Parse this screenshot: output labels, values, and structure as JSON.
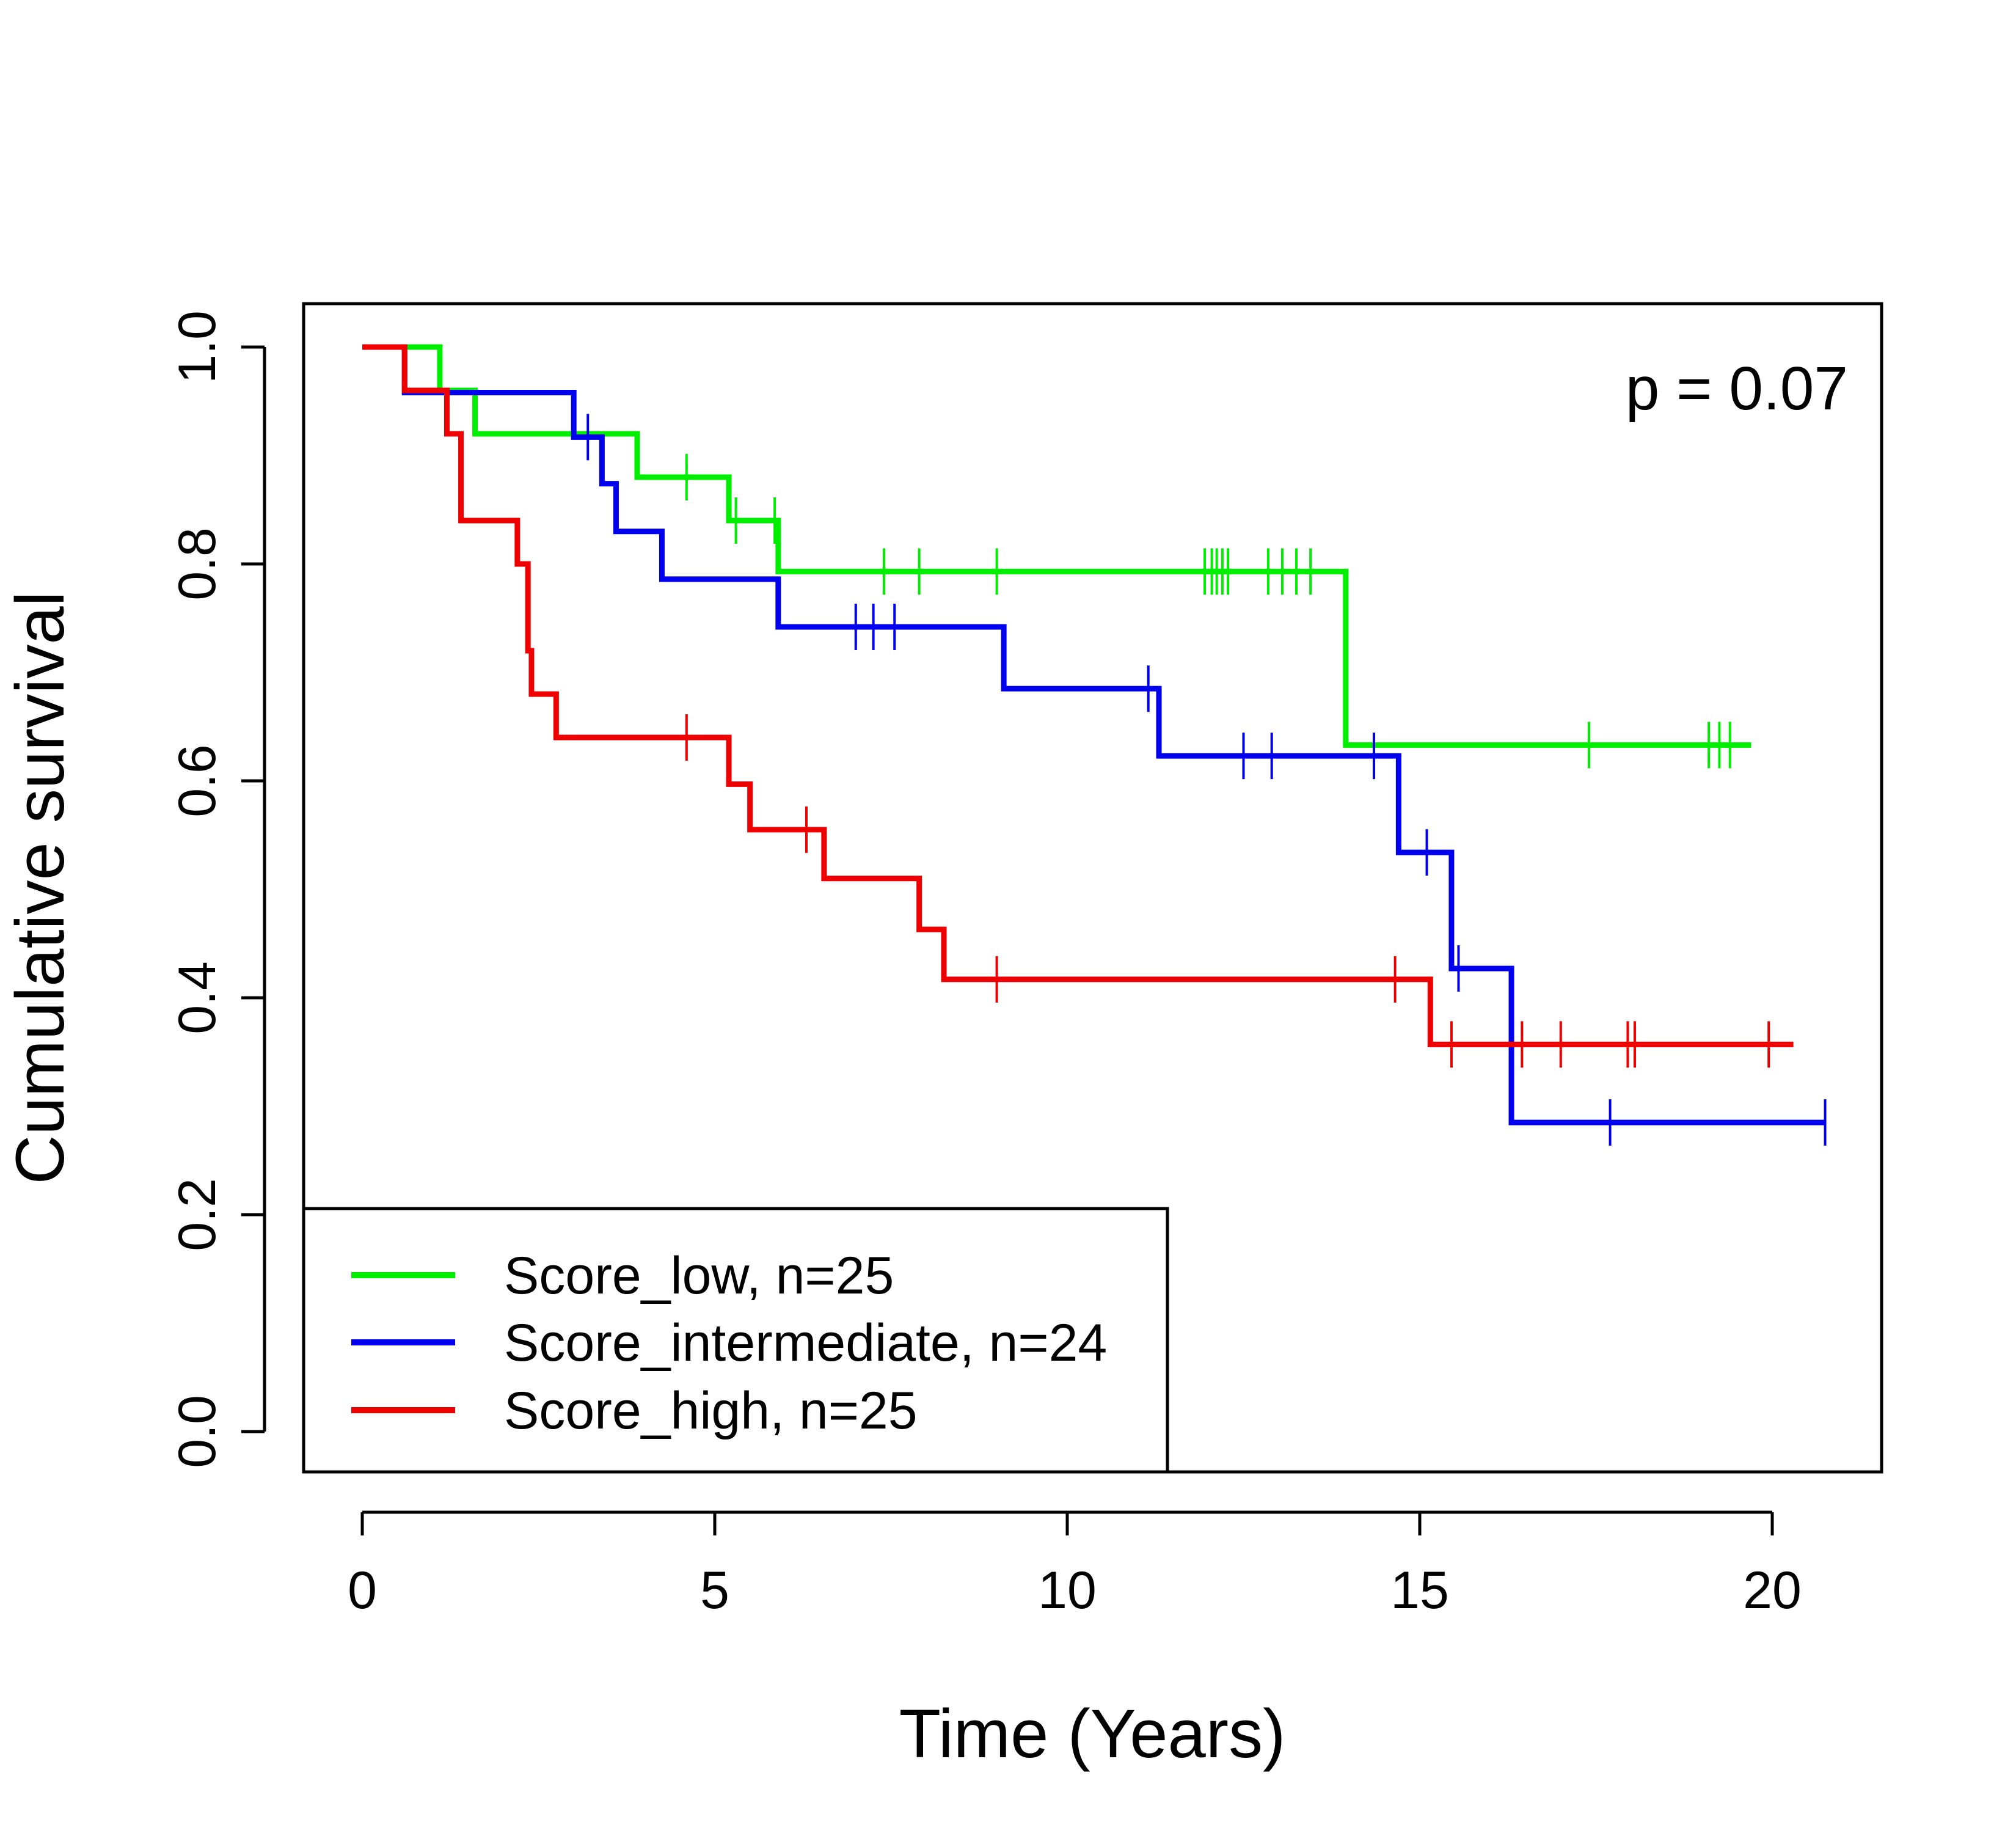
{
  "chart_data": {
    "type": "line",
    "subtype": "kaplan-meier step curves",
    "title": "",
    "xlabel": "Time (Years)",
    "ylabel": "Cumulative survival",
    "xlim": [
      0,
      21
    ],
    "ylim": [
      0,
      1.0
    ],
    "xticks": [
      0,
      5,
      10,
      15,
      20
    ],
    "xtick_labels": [
      "0",
      "5",
      "10",
      "15",
      "20"
    ],
    "yticks": [
      0.0,
      0.2,
      0.4,
      0.6,
      0.8,
      1.0
    ],
    "ytick_labels": [
      "0.0",
      "0.2",
      "0.4",
      "0.6",
      "0.8",
      "1.0"
    ],
    "grid": false,
    "legend_position": "bottom-left",
    "annotation": "p = 0.07",
    "series": [
      {
        "name": "Score_low, n=25",
        "color": "#00ee00",
        "steps": [
          {
            "t": 0.0,
            "s": 1.0
          },
          {
            "t": 1.1,
            "s": 0.96
          },
          {
            "t": 1.6,
            "s": 0.92
          },
          {
            "t": 3.9,
            "s": 0.88
          },
          {
            "t": 5.2,
            "s": 0.84
          },
          {
            "t": 5.9,
            "s": 0.793
          },
          {
            "t": 13.95,
            "s": 0.633
          }
        ],
        "end_time": 19.7,
        "censored": [
          {
            "t": 4.6,
            "s": 0.88
          },
          {
            "t": 5.3,
            "s": 0.84
          },
          {
            "t": 5.85,
            "s": 0.84
          },
          {
            "t": 7.4,
            "s": 0.793
          },
          {
            "t": 7.9,
            "s": 0.793
          },
          {
            "t": 9.0,
            "s": 0.793
          },
          {
            "t": 11.95,
            "s": 0.793
          },
          {
            "t": 12.05,
            "s": 0.793
          },
          {
            "t": 12.12,
            "s": 0.793
          },
          {
            "t": 12.2,
            "s": 0.793
          },
          {
            "t": 12.28,
            "s": 0.793
          },
          {
            "t": 12.85,
            "s": 0.793
          },
          {
            "t": 13.05,
            "s": 0.793
          },
          {
            "t": 13.25,
            "s": 0.793
          },
          {
            "t": 13.45,
            "s": 0.793
          },
          {
            "t": 17.4,
            "s": 0.633
          },
          {
            "t": 19.1,
            "s": 0.633
          },
          {
            "t": 19.25,
            "s": 0.633
          },
          {
            "t": 19.4,
            "s": 0.633
          }
        ]
      },
      {
        "name": "Score_intermediate, n=24",
        "color": "#0000ee",
        "steps": [
          {
            "t": 0.0,
            "s": 1.0
          },
          {
            "t": 0.6,
            "s": 0.958
          },
          {
            "t": 3.0,
            "s": 0.917
          },
          {
            "t": 3.4,
            "s": 0.874
          },
          {
            "t": 3.6,
            "s": 0.83
          },
          {
            "t": 4.25,
            "s": 0.786
          },
          {
            "t": 5.9,
            "s": 0.742
          },
          {
            "t": 9.1,
            "s": 0.685
          },
          {
            "t": 11.3,
            "s": 0.623
          },
          {
            "t": 14.7,
            "s": 0.534
          },
          {
            "t": 15.45,
            "s": 0.427
          },
          {
            "t": 16.3,
            "s": 0.285
          }
        ],
        "end_time": 20.75,
        "censored": [
          {
            "t": 3.2,
            "s": 0.917
          },
          {
            "t": 7.0,
            "s": 0.742
          },
          {
            "t": 7.25,
            "s": 0.742
          },
          {
            "t": 7.55,
            "s": 0.742
          },
          {
            "t": 11.15,
            "s": 0.685
          },
          {
            "t": 12.5,
            "s": 0.623
          },
          {
            "t": 12.9,
            "s": 0.623
          },
          {
            "t": 14.35,
            "s": 0.623
          },
          {
            "t": 15.1,
            "s": 0.534
          },
          {
            "t": 15.55,
            "s": 0.427
          },
          {
            "t": 17.7,
            "s": 0.285
          },
          {
            "t": 20.75,
            "s": 0.285
          }
        ]
      },
      {
        "name": "Score_high, n=25",
        "color": "#ee0000",
        "steps": [
          {
            "t": 0.0,
            "s": 1.0
          },
          {
            "t": 0.6,
            "s": 0.96
          },
          {
            "t": 1.2,
            "s": 0.92
          },
          {
            "t": 1.4,
            "s": 0.84
          },
          {
            "t": 2.2,
            "s": 0.8
          },
          {
            "t": 2.35,
            "s": 0.72
          },
          {
            "t": 2.4,
            "s": 0.68
          },
          {
            "t": 2.75,
            "s": 0.64
          },
          {
            "t": 5.2,
            "s": 0.597
          },
          {
            "t": 5.5,
            "s": 0.555
          },
          {
            "t": 6.55,
            "s": 0.51
          },
          {
            "t": 7.9,
            "s": 0.463
          },
          {
            "t": 8.25,
            "s": 0.417
          },
          {
            "t": 15.15,
            "s": 0.357
          }
        ],
        "end_time": 20.3,
        "censored": [
          {
            "t": 4.6,
            "s": 0.64
          },
          {
            "t": 6.3,
            "s": 0.555
          },
          {
            "t": 9.0,
            "s": 0.417
          },
          {
            "t": 14.65,
            "s": 0.417
          },
          {
            "t": 15.45,
            "s": 0.357
          },
          {
            "t": 16.45,
            "s": 0.357
          },
          {
            "t": 17.0,
            "s": 0.357
          },
          {
            "t": 17.95,
            "s": 0.357
          },
          {
            "t": 18.05,
            "s": 0.357
          },
          {
            "t": 19.95,
            "s": 0.357
          }
        ]
      }
    ]
  }
}
